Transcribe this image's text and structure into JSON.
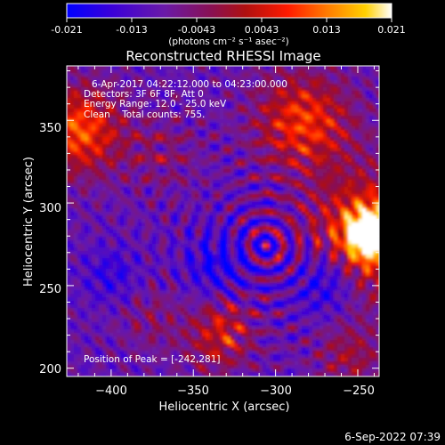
{
  "colorbar": {
    "ticks": [
      "-0.021",
      "-0.013",
      "-0.0043",
      "0.0043",
      "0.013",
      "0.021"
    ],
    "unit_text": "(photons cm⁻² s⁻¹ asec⁻²)",
    "range": [
      -0.021,
      0.021
    ],
    "colors": [
      "#0000ff",
      "#3b00d8",
      "#6a1aa8",
      "#b01010",
      "#ff1a00",
      "#ff7a00",
      "#ffd000",
      "#ffffff"
    ]
  },
  "footer": {
    "timestamp": "6-Sep-2022 07:39"
  },
  "chart_data": {
    "type": "heatmap",
    "title": "Reconstructed RHESSI Image",
    "xlabel": "Heliocentric X (arcsec)",
    "ylabel": "Heliocentric Y (arcsec)",
    "xlim": [
      -427,
      -237
    ],
    "ylim": [
      195,
      383
    ],
    "x_ticks": [
      -400,
      -350,
      -300,
      -250
    ],
    "y_ticks": [
      200,
      250,
      300,
      350
    ],
    "x_tick_labels": [
      "−400",
      "−350",
      "−300",
      "−250"
    ],
    "y_tick_labels": [
      "200",
      "250",
      "300",
      "350"
    ],
    "annotations": [
      "6-Apr-2017 04:22:12.000 to 04:23:00.000",
      "Detectors: 3F 6F 8F, Att 0",
      "Energy Range: 12.0 - 25.0 keV",
      "Clean    Total counts: 755."
    ],
    "peak_label": "Position of Peak = [-242,281]",
    "peak_position": [
      -242,
      281
    ],
    "grid": false
  }
}
